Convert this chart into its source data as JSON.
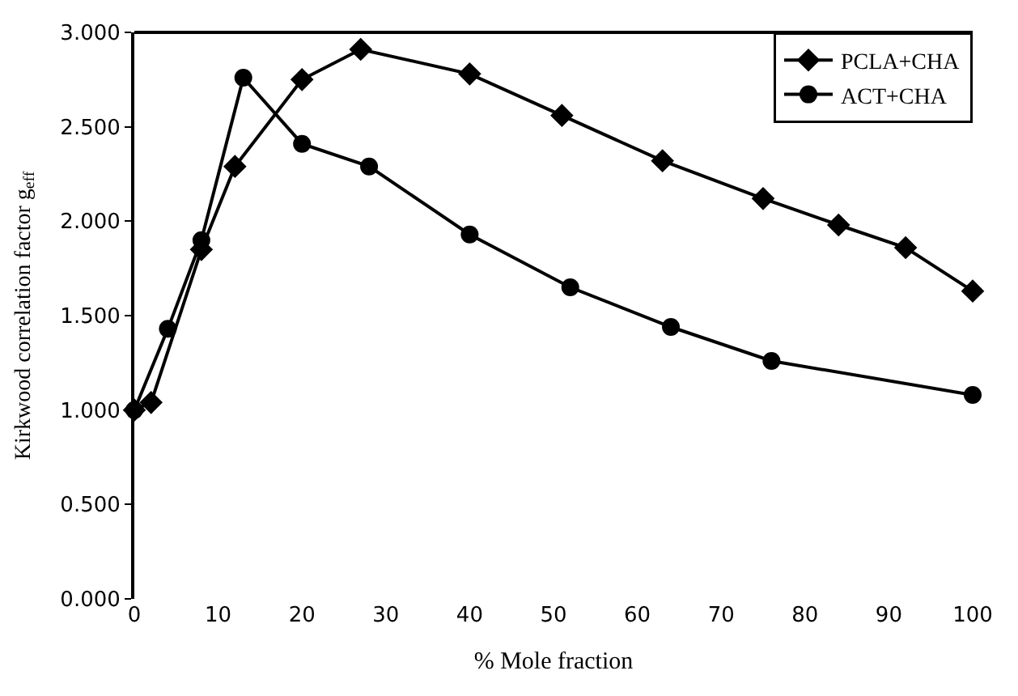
{
  "chart_data": {
    "type": "line",
    "xlabel": "% Mole fraction",
    "ylabel": "Kirkwood correlation factor g$_{eff}$",
    "series": [
      {
        "name": "PCLA+CHA",
        "color": "#000000",
        "marker": "diamond",
        "x": [
          0,
          2,
          8,
          12,
          20,
          27,
          40,
          51,
          63,
          75,
          84,
          92,
          100
        ],
        "values": [
          1.0,
          1.04,
          1.85,
          2.29,
          2.75,
          2.91,
          2.78,
          2.56,
          2.32,
          2.12,
          1.98,
          1.86,
          1.63
        ]
      },
      {
        "name": "ACT+CHA",
        "color": "#000000",
        "marker": "circle",
        "x": [
          0,
          4,
          8,
          13,
          20,
          28,
          40,
          52,
          64,
          76,
          100
        ],
        "values": [
          1.0,
          1.43,
          1.9,
          2.76,
          2.41,
          2.29,
          1.93,
          1.65,
          1.44,
          1.26,
          1.08
        ]
      }
    ],
    "xlim": [
      0,
      100
    ],
    "xticks": [
      0,
      10,
      20,
      30,
      40,
      50,
      60,
      70,
      80,
      90,
      100
    ],
    "ylim": [
      0,
      3
    ],
    "yticks": [
      {
        "value": 0,
        "label": "0.000"
      },
      {
        "value": 0.5,
        "label": "0.500"
      },
      {
        "value": 1,
        "label": "1.000"
      },
      {
        "value": 1.5,
        "label": "1.500"
      },
      {
        "value": 2,
        "label": "2.000"
      },
      {
        "value": 2.5,
        "label": "2.500"
      },
      {
        "value": 3,
        "label": "3.000"
      }
    ],
    "legend": "top right",
    "line_style": "solid"
  }
}
